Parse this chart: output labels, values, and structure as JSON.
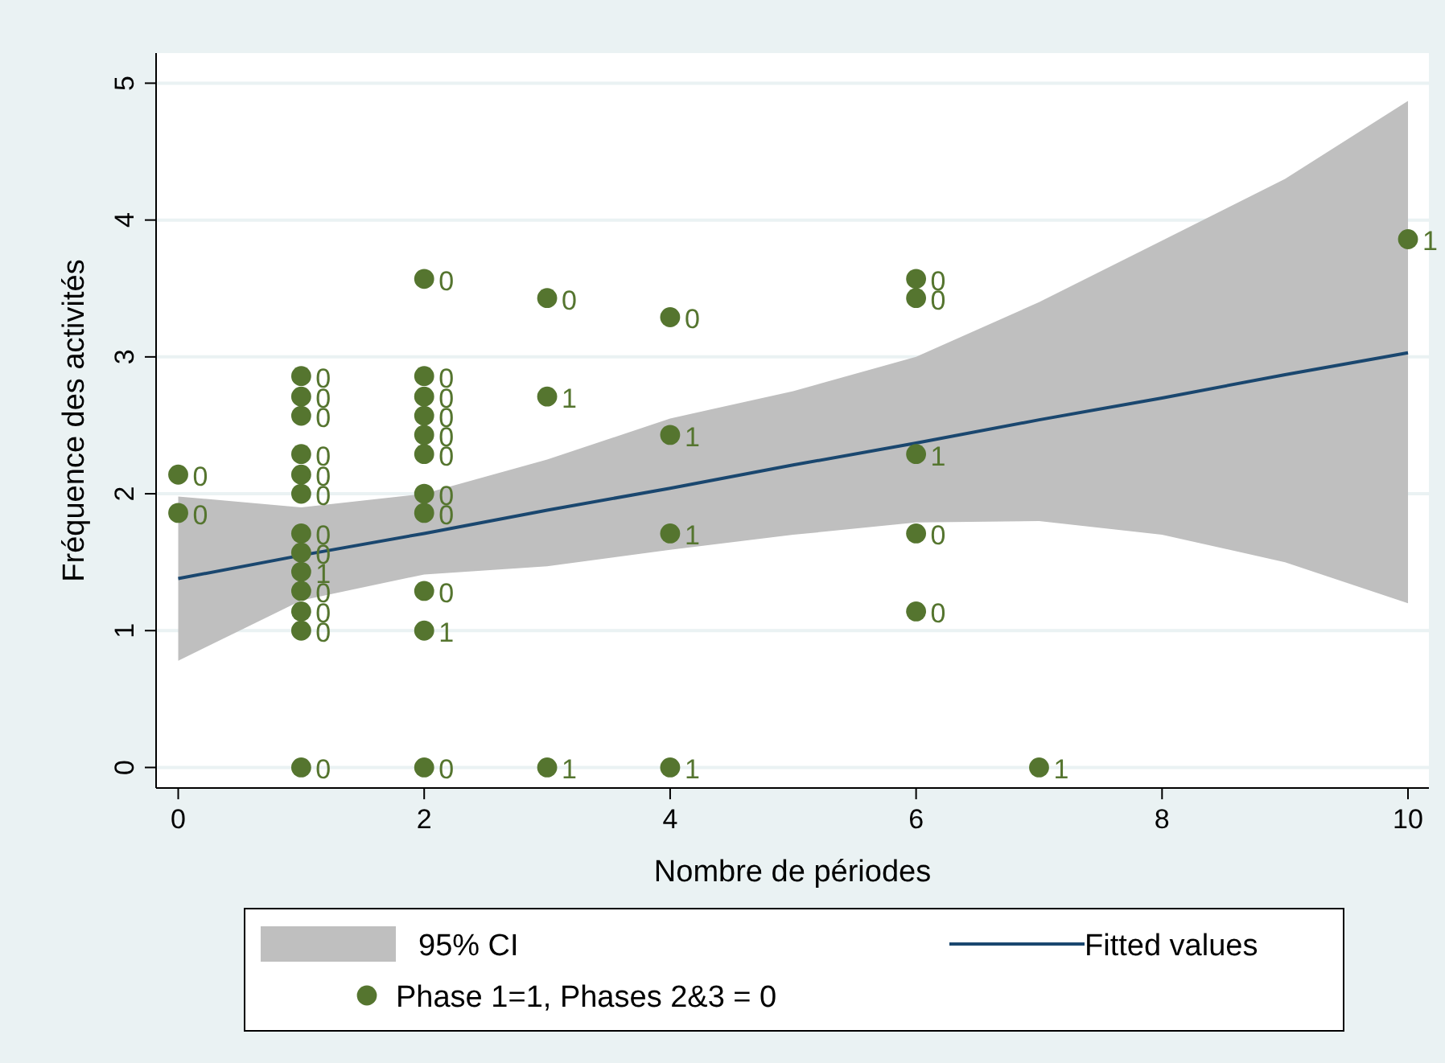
{
  "chart_data": {
    "type": "scatter",
    "xlabel": "Nombre de périodes",
    "ylabel": "Fréquence des activités",
    "xlim": [
      -0.18,
      10.17
    ],
    "ylim": [
      -0.15,
      5.22
    ],
    "xticks": [
      0,
      2,
      4,
      6,
      8,
      10
    ],
    "yticks": [
      0,
      1,
      2,
      3,
      4,
      5
    ],
    "grid": "y",
    "legend": "bottom",
    "series": [
      {
        "type": "line",
        "name": "Fitted values",
        "color": "#1a476f",
        "x": [
          0,
          1,
          2,
          3,
          4,
          5,
          6,
          7,
          8,
          9,
          10
        ],
        "values": [
          1.38,
          1.55,
          1.71,
          1.88,
          2.04,
          2.21,
          2.37,
          2.54,
          2.7,
          2.87,
          3.03
        ],
        "lower": [
          0.78,
          1.22,
          1.41,
          1.47,
          1.59,
          1.7,
          1.79,
          1.8,
          1.7,
          1.5,
          1.2
        ],
        "upper": [
          1.98,
          1.9,
          2.0,
          2.25,
          2.55,
          2.75,
          3.0,
          3.4,
          3.85,
          4.3,
          4.87
        ]
      },
      {
        "name": "Phase 1=1, Phases 2&3 = 0",
        "color": "#55752f",
        "marker": "circle",
        "x": [
          0,
          0,
          1,
          1,
          1,
          1,
          1,
          1,
          1,
          1,
          1,
          1,
          1,
          1,
          1,
          2,
          2,
          2,
          2,
          2,
          2,
          2,
          2,
          2,
          2,
          2,
          3,
          3,
          3,
          4,
          4,
          4,
          4,
          6,
          6,
          6,
          6,
          6,
          7,
          10
        ],
        "values": [
          2.14,
          1.86,
          2.86,
          2.71,
          2.57,
          2.29,
          2.14,
          2.0,
          1.71,
          1.57,
          1.43,
          1.29,
          1.14,
          1.0,
          0,
          3.57,
          2.86,
          2.71,
          2.57,
          2.43,
          2.29,
          2.0,
          1.86,
          1.29,
          1.0,
          0,
          3.43,
          2.71,
          0,
          3.29,
          2.43,
          1.71,
          0,
          3.57,
          3.43,
          2.29,
          1.71,
          1.14,
          0,
          3.86
        ]
      }
    ],
    "annotations": [
      "95% CI",
      {
        "text": "0",
        "x": 0,
        "y": 2.14
      },
      {
        "text": "0",
        "x": 0,
        "y": 1.86
      },
      {
        "text": "0",
        "x": 1,
        "y": 2.86
      },
      {
        "text": "0",
        "x": 1,
        "y": 2.71
      },
      {
        "text": "0",
        "x": 1,
        "y": 2.57
      },
      {
        "text": "0",
        "x": 1,
        "y": 2.29
      },
      {
        "text": "0",
        "x": 1,
        "y": 2.14
      },
      {
        "text": "0",
        "x": 1,
        "y": 2.0
      },
      {
        "text": "0",
        "x": 1,
        "y": 1.71
      },
      {
        "text": "0",
        "x": 1,
        "y": 1.57
      },
      {
        "text": "1",
        "x": 1,
        "y": 1.43
      },
      {
        "text": "0",
        "x": 1,
        "y": 1.29
      },
      {
        "text": "0",
        "x": 1,
        "y": 1.14
      },
      {
        "text": "0",
        "x": 1,
        "y": 1.0
      },
      {
        "text": "0",
        "x": 1,
        "y": 0
      },
      {
        "text": "0",
        "x": 2,
        "y": 3.57
      },
      {
        "text": "0",
        "x": 2,
        "y": 2.86
      },
      {
        "text": "0",
        "x": 2,
        "y": 2.71
      },
      {
        "text": "0",
        "x": 2,
        "y": 2.57
      },
      {
        "text": "0",
        "x": 2,
        "y": 2.43
      },
      {
        "text": "0",
        "x": 2,
        "y": 2.29
      },
      {
        "text": "0",
        "x": 2,
        "y": 2.0
      },
      {
        "text": "0",
        "x": 2,
        "y": 1.86
      },
      {
        "text": "0",
        "x": 2,
        "y": 1.29
      },
      {
        "text": "1",
        "x": 2,
        "y": 1.0
      },
      {
        "text": "0",
        "x": 2,
        "y": 0
      },
      {
        "text": "0",
        "x": 3,
        "y": 3.43
      },
      {
        "text": "1",
        "x": 3,
        "y": 2.71
      },
      {
        "text": "1",
        "x": 3,
        "y": 0
      },
      {
        "text": "0",
        "x": 4,
        "y": 3.29
      },
      {
        "text": "1",
        "x": 4,
        "y": 2.43
      },
      {
        "text": "1",
        "x": 4,
        "y": 1.71
      },
      {
        "text": "1",
        "x": 4,
        "y": 0
      },
      {
        "text": "0",
        "x": 6,
        "y": 3.57
      },
      {
        "text": "0",
        "x": 6,
        "y": 3.43
      },
      {
        "text": "1",
        "x": 6,
        "y": 2.29
      },
      {
        "text": "0",
        "x": 6,
        "y": 1.71
      },
      {
        "text": "0",
        "x": 6,
        "y": 1.14
      },
      {
        "text": "1",
        "x": 7,
        "y": 0
      },
      {
        "text": "1",
        "x": 10,
        "y": 3.86
      }
    ]
  }
}
